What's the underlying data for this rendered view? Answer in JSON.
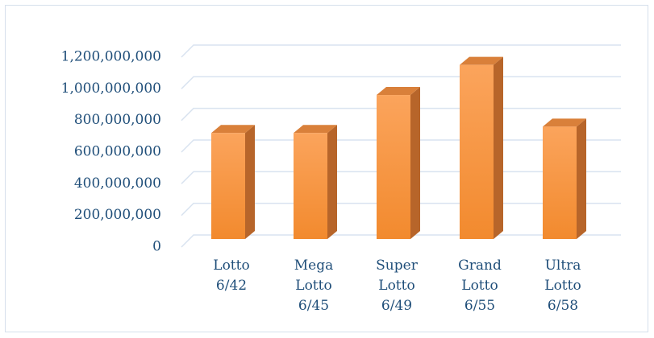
{
  "chart_data": {
    "type": "bar3d",
    "categories": [
      "Lotto 6/42",
      "Mega Lotto 6/45",
      "Super Lotto 6/49",
      "Grand Lotto 6/55",
      "Ultra Lotto 6/58"
    ],
    "values": [
      670000000,
      670000000,
      910000000,
      1100000000,
      710000000
    ],
    "color": "#f79646",
    "ylim": [
      0,
      1200000000
    ],
    "yticks": [
      0,
      {
        "value": 200000000,
        "label": "200,000,000"
      },
      {
        "value": 400000000,
        "label": "400,000,000"
      },
      {
        "value": 600000000,
        "label": "600,000,000"
      },
      {
        "value": 800000000,
        "label": "800,000,000"
      },
      {
        "value": 1000000000,
        "label": "1,000,000,000"
      },
      {
        "value": 1200000000,
        "label": "1,200,000,000"
      }
    ],
    "grid": true
  }
}
